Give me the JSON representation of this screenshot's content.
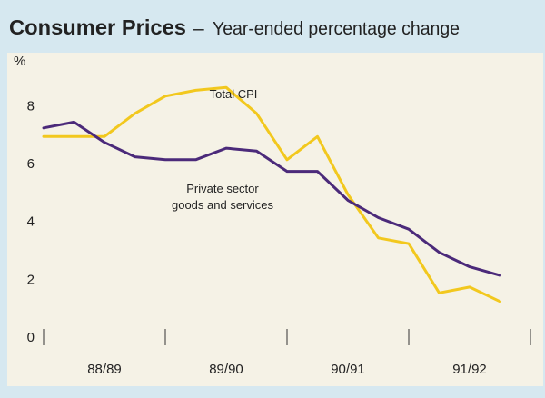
{
  "title": "Consumer Prices",
  "subtitle": "Year-ended percentage change",
  "title_separator": "–",
  "colors": {
    "background": "#d6e8f0",
    "plot_background": "#f5f2e6",
    "total_cpi": "#f2c81e",
    "private_sector": "#4b2a7a",
    "text": "#222222"
  },
  "chart_data": {
    "type": "line",
    "title": "Consumer Prices – Year-ended percentage change",
    "ylabel": "%",
    "xlabel": "",
    "ylim": [
      0,
      9
    ],
    "yticks": [
      0,
      2,
      4,
      6,
      8
    ],
    "xlim": [
      0,
      16
    ],
    "x_categories": [
      "88/89",
      "89/90",
      "90/91",
      "91/92"
    ],
    "x": [
      0,
      1,
      2,
      3,
      4,
      5,
      6,
      7,
      8,
      9,
      10,
      11,
      12,
      13,
      14,
      15,
      16
    ],
    "series": [
      {
        "name": "Total CPI",
        "values": [
          6.9,
          6.9,
          6.9,
          7.7,
          8.3,
          8.5,
          8.6,
          7.7,
          6.1,
          6.9,
          4.9,
          3.4,
          3.2,
          1.5,
          1.7,
          1.2,
          null
        ]
      },
      {
        "name": "Private sector goods and services",
        "values": [
          7.2,
          7.4,
          6.7,
          6.2,
          6.1,
          6.1,
          6.5,
          6.4,
          5.7,
          5.7,
          4.7,
          4.1,
          3.7,
          2.9,
          2.4,
          2.1,
          null
        ]
      }
    ],
    "annotations": [
      {
        "series": "Total CPI",
        "text": "Total CPI"
      },
      {
        "series": "Private sector goods and services",
        "lines": [
          "Private sector",
          "goods and services"
        ]
      }
    ]
  }
}
